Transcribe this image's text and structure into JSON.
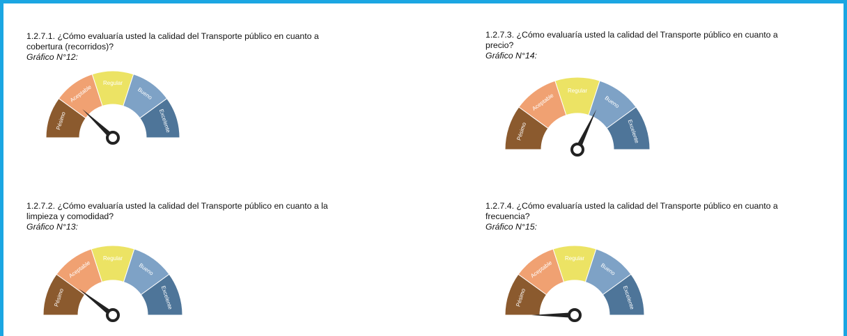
{
  "sections": [
    {
      "question_lines": [
        "1.2.7.1. ¿Cómo evaluaría usted la calidad del Transporte público en cuanto a",
        "cobertura (recorridos)?"
      ],
      "caption": "Gráfico N°12:",
      "gauge": {
        "segments": [
          "Pésimo",
          "Aceptable",
          "Regular",
          "Bueno",
          "Excelente"
        ],
        "range": [
          0,
          5
        ],
        "needle": 1.2
      }
    },
    {
      "question_lines": [
        "1.2.7.3. ¿Cómo evaluaría usted la calidad del Transporte público en cuanto a",
        "precio?"
      ],
      "caption": "Gráfico N°14:",
      "gauge": {
        "segments": [
          "Pésimo",
          "Aceptable",
          "Regular",
          "Bueno",
          "Excelente"
        ],
        "range": [
          0,
          5
        ],
        "needle": 3.2
      }
    },
    {
      "question_lines": [
        "1.2.7.2. ¿Cómo evaluaría usted la calidad del Transporte público en cuanto a la",
        "limpieza y comodidad?"
      ],
      "caption": "Gráfico N°13:",
      "gauge": {
        "segments": [
          "Pésimo",
          "Aceptable",
          "Regular",
          "Bueno",
          "Excelente"
        ],
        "range": [
          0,
          5
        ],
        "needle": 1.05
      }
    },
    {
      "question_lines": [
        "1.2.7.4. ¿Cómo evaluaría usted la calidad del Transporte público en cuanto a",
        "frecuencia?"
      ],
      "caption": "Gráfico N°15:",
      "gauge": {
        "segments": [
          "Pésimo",
          "Aceptable",
          "Regular",
          "Bueno",
          "Excelente"
        ],
        "range": [
          0,
          5
        ],
        "needle": 0
      }
    }
  ],
  "segment_colors": [
    "#8b5a2e",
    "#f0a172",
    "#ece364",
    "#7ea2c6",
    "#4e7599"
  ]
}
